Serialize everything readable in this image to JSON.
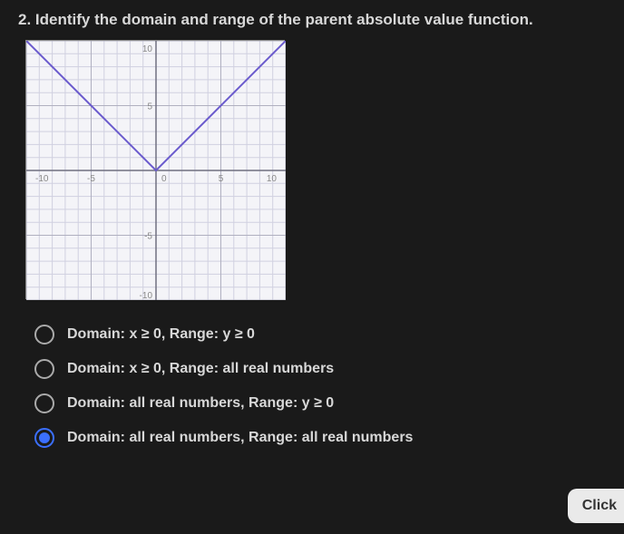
{
  "question": {
    "number": "2.",
    "text": "Identify the domain and range of the parent absolute value function."
  },
  "graph": {
    "type": "line",
    "xlim": [
      -10,
      10
    ],
    "ylim": [
      -10,
      10
    ],
    "xtick_step": 1,
    "ytick_step": 1,
    "major_tick_step": 5,
    "grid_color_minor": "#d0d0e0",
    "grid_color_major": "#b0b0c0",
    "axis_color": "#707080",
    "background_color": "#f4f4f8",
    "line_color": "#6a5acd",
    "line_width": 2,
    "series": {
      "points": [
        [
          -10,
          10
        ],
        [
          0,
          0
        ],
        [
          10,
          10
        ]
      ]
    },
    "axis_labels": {
      "x_neg": "-10",
      "x_neg_mid": "-5",
      "x_pos_mid": "5",
      "x_pos": "10",
      "y_pos": "10",
      "y_pos_mid": "5",
      "y_neg_mid": "-5",
      "y_neg": "-10",
      "origin": "0"
    },
    "label_color": "#888",
    "label_fontsize": 10
  },
  "options": [
    {
      "label": "Domain: x ≥ 0, Range: y ≥ 0",
      "selected": false
    },
    {
      "label": "Domain: x ≥ 0, Range: all real numbers",
      "selected": false
    },
    {
      "label": "Domain: all real numbers, Range: y ≥ 0",
      "selected": false
    },
    {
      "label": "Domain: all real numbers, Range: all real numbers",
      "selected": true
    }
  ],
  "button": {
    "label": "Click"
  }
}
